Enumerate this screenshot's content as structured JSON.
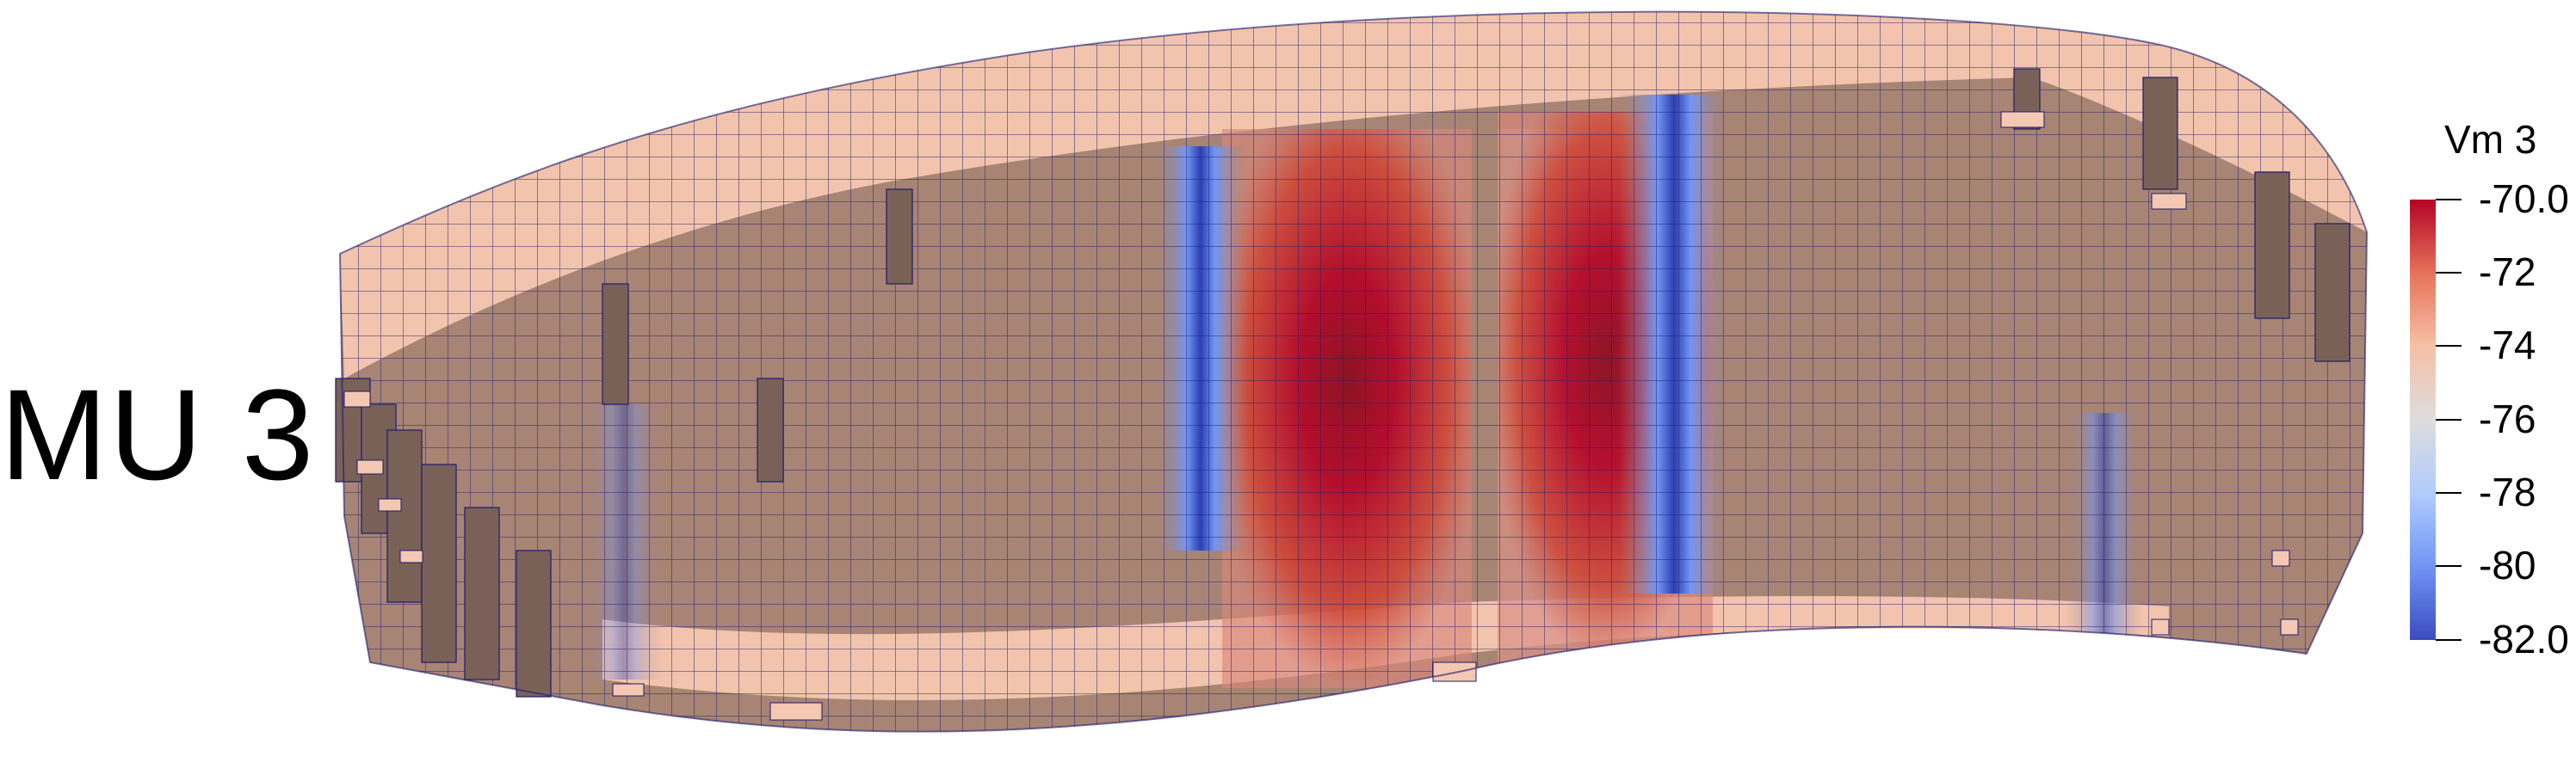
{
  "scene_label": "MU 3",
  "colorbar": {
    "title": "Vm 3",
    "ticks": [
      "-70.0",
      "-72",
      "-74",
      "-76",
      "-78",
      "-80",
      "-82.0"
    ],
    "range": [
      -82.0,
      -70.0
    ],
    "colormap": [
      "#3b4cc0",
      "#7396f5",
      "#b0cbfc",
      "#dddddd",
      "#f6bfa6",
      "#e7745b",
      "#b40426"
    ]
  },
  "colors": {
    "background": "#ffffff",
    "tissue_top": "#f2c4ad",
    "tissue_side": "#a88474",
    "tissue_dark": "#7a6158",
    "mesh_line": "#1c1c6e",
    "depolarized": "#b40426",
    "hyperpolarized": "#3b4cc0"
  }
}
